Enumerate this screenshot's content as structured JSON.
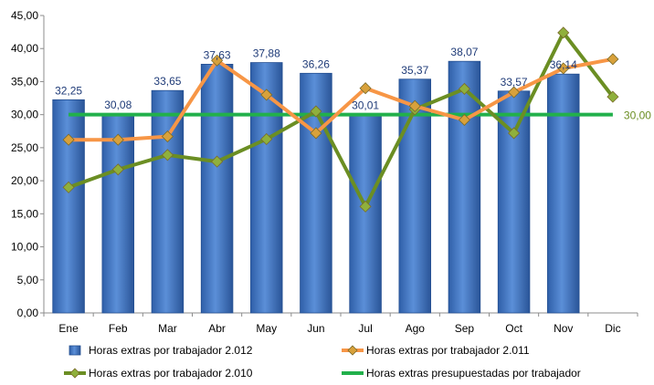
{
  "chart_data": {
    "type": "bar",
    "categories": [
      "Ene",
      "Feb",
      "Mar",
      "Abr",
      "May",
      "Jun",
      "Jul",
      "Ago",
      "Sep",
      "Oct",
      "Nov",
      "Dic"
    ],
    "ylim": [
      0,
      45
    ],
    "yticks": [
      "0,00",
      "5,00",
      "10,00",
      "15,00",
      "20,00",
      "25,00",
      "30,00",
      "35,00",
      "40,00",
      "45,00"
    ],
    "grid": false,
    "legend_position": "bottom",
    "series": [
      {
        "name": "Horas extras por trabajador 2.012",
        "kind": "bar",
        "color": "#3f74c4",
        "values": [
          32.25,
          30.08,
          33.65,
          37.63,
          37.88,
          36.26,
          30.01,
          35.37,
          38.07,
          33.57,
          36.14,
          null
        ],
        "labels": [
          "32,25",
          "30,08",
          "33,65",
          "37,63",
          "37,88",
          "36,26",
          "30,01",
          "35,37",
          "38,07",
          "33,57",
          "36,14",
          ""
        ]
      },
      {
        "name": "Horas extras por trabajador 2.011",
        "kind": "line",
        "color": "#f79646",
        "marker_color": "#d8a13b",
        "values": [
          26.2,
          26.2,
          26.7,
          38.2,
          33.0,
          27.2,
          34.0,
          31.3,
          29.2,
          33.4,
          37.0,
          38.4
        ]
      },
      {
        "name": "Horas extras por trabajador 2.010",
        "kind": "line",
        "color": "#6b8e23",
        "marker_color": "#8fb03c",
        "values": [
          19.0,
          21.7,
          23.9,
          22.9,
          26.3,
          30.5,
          16.1,
          30.8,
          33.9,
          27.2,
          42.4,
          32.7
        ]
      },
      {
        "name": "Horas extras presupuestadas por trabajador",
        "kind": "line",
        "color": "#22b04b",
        "values": [
          30,
          30,
          30,
          30,
          30,
          30,
          30,
          30,
          30,
          30,
          30,
          30
        ],
        "end_label": "30,00"
      }
    ]
  }
}
